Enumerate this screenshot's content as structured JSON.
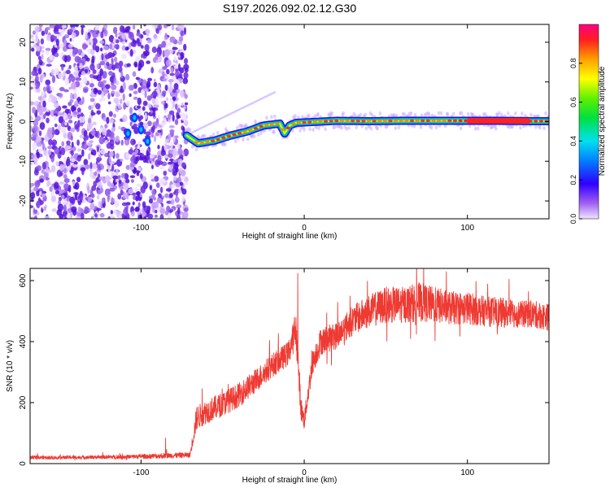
{
  "figure": {
    "title": "S197.2026.092.02.12.G30"
  },
  "chart_data": [
    {
      "type": "heatmap",
      "title": "S197.2026.092.02.12.G30",
      "xlabel": "Height of straight line (km)",
      "ylabel": "Frequency (Hz)",
      "xlim": [
        -168,
        150
      ],
      "ylim": [
        -24.5,
        24.5
      ],
      "xticks": [
        -100,
        0,
        100
      ],
      "xtick_labels": [
        "-100",
        "0",
        "100"
      ],
      "yticks": [
        -20,
        -10,
        0,
        10,
        20
      ],
      "ytick_labels": [
        "-20",
        "-10",
        "0",
        "10",
        "20"
      ],
      "colorbar": {
        "label": "Normalized spectral amplitude",
        "range": [
          0,
          1
        ],
        "ticks": [
          0.0,
          0.2,
          0.4,
          0.6,
          0.8
        ],
        "tick_labels": [
          "0.0",
          "0.2",
          "0.4",
          "0.6",
          "0.8"
        ]
      },
      "noise_region_x": [
        -168,
        -72
      ],
      "ridge": {
        "description_points_x": [
          -72,
          -65,
          -55,
          -45,
          -35,
          -25,
          -15,
          -12,
          -9,
          -5,
          0,
          10,
          20,
          40,
          60,
          80,
          100,
          120,
          140,
          150
        ],
        "frequency_hz": [
          -3.5,
          -5.5,
          -4.8,
          -3.5,
          -2.5,
          -1.0,
          -0.5,
          -3.0,
          -1.0,
          -0.3,
          -0.2,
          0.0,
          0.2,
          0.1,
          0.2,
          0.2,
          0.2,
          0.2,
          0.1,
          0.1
        ]
      }
    },
    {
      "type": "line",
      "xlabel": "Height of straight line (km)",
      "ylabel": "SNR (10 * v/v)",
      "xlim": [
        -168,
        150
      ],
      "ylim": [
        0,
        640
      ],
      "xticks": [
        -100,
        0,
        100
      ],
      "xtick_labels": [
        "-100",
        "0",
        "100"
      ],
      "yticks": [
        0,
        200,
        400,
        600
      ],
      "ytick_labels": [
        "0",
        "200",
        "400",
        "600"
      ],
      "series": [
        {
          "name": "SNR",
          "color": "#ee3a32",
          "x": [
            -168,
            -150,
            -130,
            -110,
            -90,
            -80,
            -70,
            -66,
            -60,
            -50,
            -40,
            -30,
            -20,
            -10,
            -5,
            -2,
            0,
            5,
            10,
            20,
            30,
            40,
            50,
            60,
            70,
            80,
            90,
            100,
            110,
            120,
            130,
            140,
            150
          ],
          "y": [
            20,
            20,
            21,
            22,
            25,
            27,
            28,
            150,
            170,
            195,
            225,
            270,
            320,
            360,
            440,
            180,
            140,
            330,
            400,
            420,
            470,
            500,
            520,
            520,
            530,
            520,
            510,
            510,
            500,
            495,
            490,
            490,
            480
          ],
          "noise_amplitude": [
            6,
            6,
            6,
            7,
            9,
            9,
            9,
            40,
            40,
            40,
            40,
            40,
            40,
            40,
            60,
            40,
            30,
            40,
            45,
            45,
            50,
            55,
            60,
            60,
            65,
            60,
            55,
            55,
            50,
            50,
            45,
            45,
            45
          ],
          "peaks": [
            {
              "x": -4,
              "y": 625
            },
            {
              "x": -85,
              "y": 85
            }
          ]
        }
      ]
    }
  ]
}
